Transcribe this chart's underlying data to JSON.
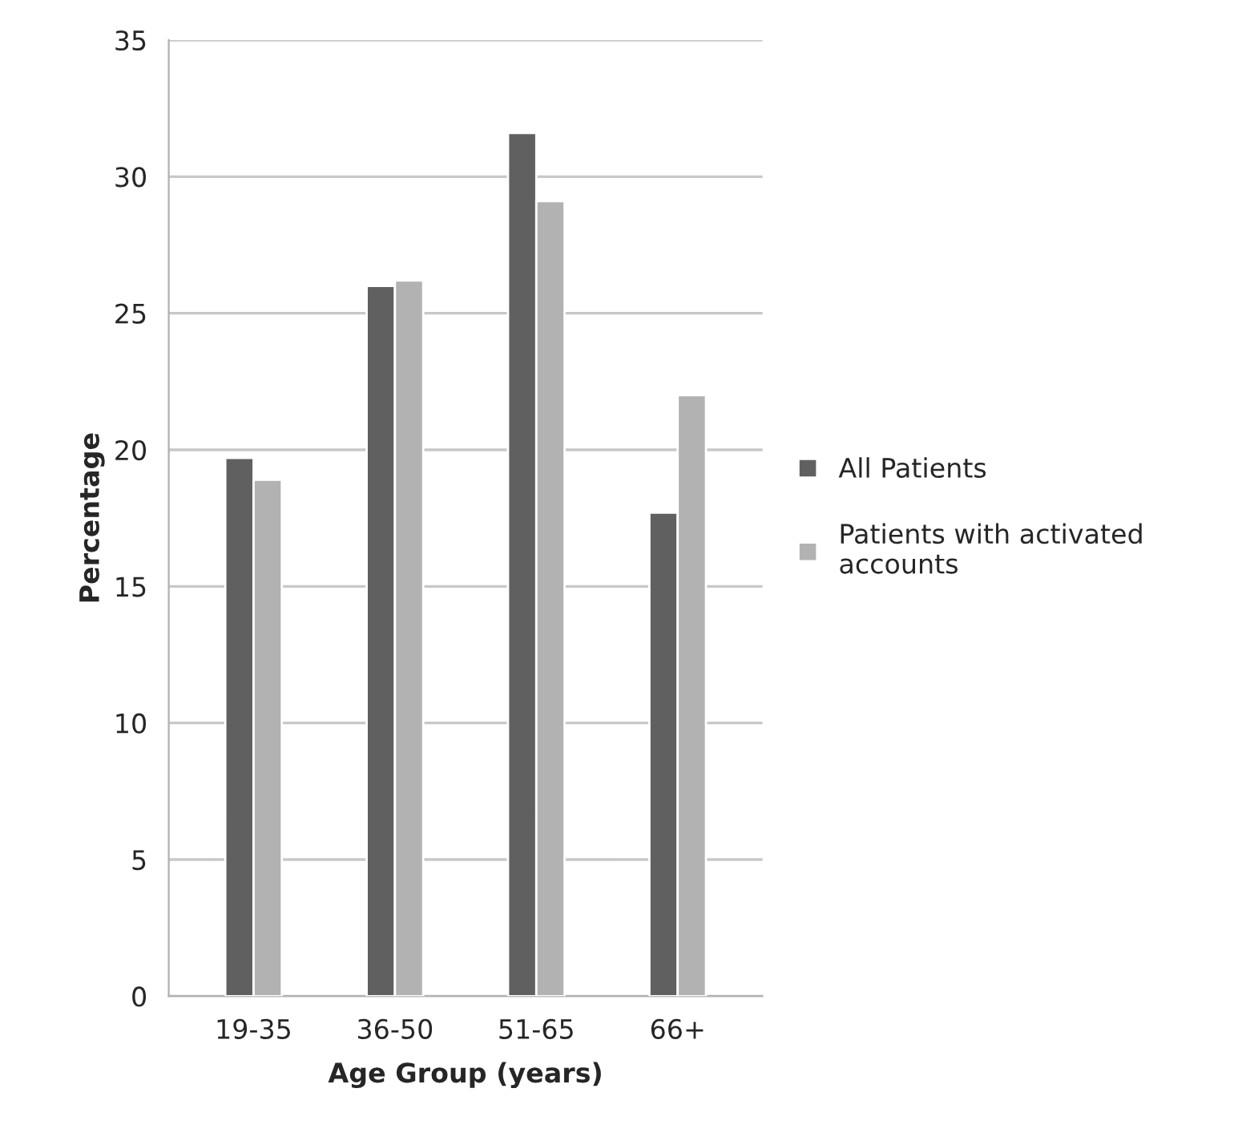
{
  "chart_data": {
    "type": "bar",
    "xlabel": "Age Group (years)",
    "ylabel": "Percentage",
    "categories": [
      "19-35",
      "36-50",
      "51-65",
      "66+"
    ],
    "series": [
      {
        "name": "All Patients",
        "color": "#606060",
        "values": [
          19.7,
          26.0,
          31.6,
          17.7
        ]
      },
      {
        "name": "Patients with activated accounts",
        "color": "#b2b2b2",
        "values": [
          18.9,
          26.2,
          29.1,
          22.0
        ]
      }
    ],
    "ylim": [
      0,
      35
    ],
    "yticks": [
      0,
      5,
      10,
      15,
      20,
      25,
      30,
      35
    ],
    "grid": "y",
    "legend": "right"
  }
}
